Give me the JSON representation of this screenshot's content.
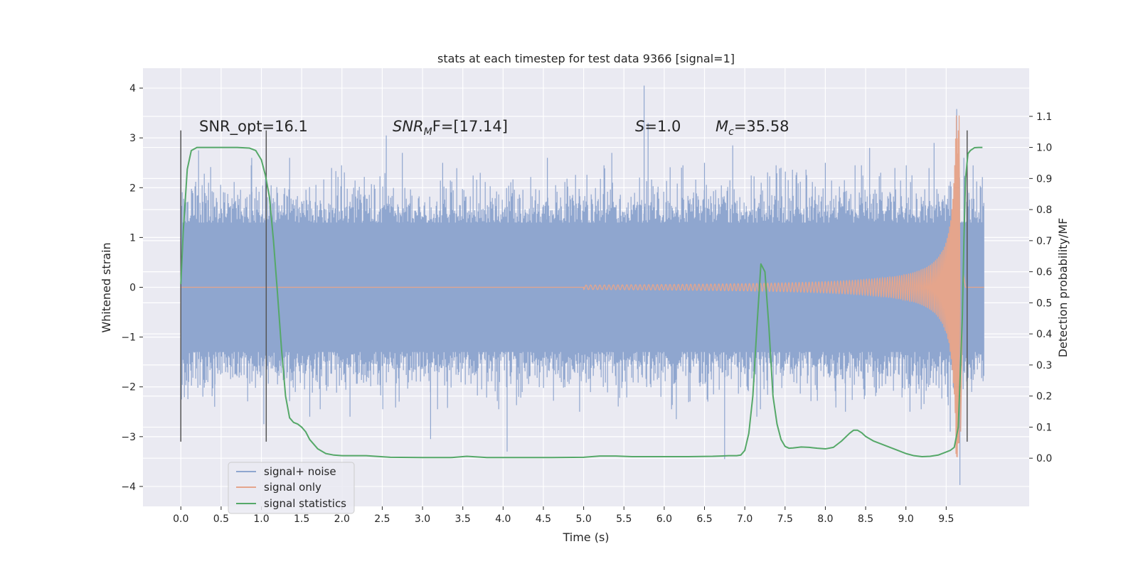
{
  "chart_data": {
    "type": "line",
    "title": "stats at each timestep for test data 9366 [signal=1]",
    "xlabel": "Time (s)",
    "ylabel": "Whitened strain",
    "ylabel_right": "Detection probability/MF",
    "xlim": [
      -0.47,
      10.53
    ],
    "ylim": [
      -4.4,
      4.4
    ],
    "ylim_right": [
      -0.155,
      1.255
    ],
    "x_ticks": [
      "0.0",
      "0.5",
      "1.0",
      "1.5",
      "2.0",
      "2.5",
      "3.0",
      "3.5",
      "4.0",
      "4.5",
      "5.0",
      "5.5",
      "6.0",
      "6.5",
      "7.0",
      "7.5",
      "8.0",
      "8.5",
      "9.0",
      "9.5"
    ],
    "y_ticks": [
      "4",
      "3",
      "2",
      "1",
      "0",
      "−1",
      "−2",
      "−3",
      "−4"
    ],
    "y_ticks_right": [
      "1.1",
      "1.0",
      "0.9",
      "0.8",
      "0.7",
      "0.6",
      "0.5",
      "0.4",
      "0.3",
      "0.2",
      "0.1",
      "0.0"
    ],
    "grid": true,
    "legend_placement": "lower-left",
    "annotations": {
      "snr_opt": "SNR_opt=16.1",
      "snr_mf_name": "SNR",
      "snr_mf_sub": "M",
      "snr_mf_rest": "F=[17.14]",
      "s_name": "S",
      "s_rest": "=1.0",
      "mc_name": "M",
      "mc_sub": "c",
      "mc_rest": "=35.58"
    },
    "vertical_markers": [
      0.0,
      1.06,
      9.76
    ],
    "vertical_marker_range": [
      -3.1,
      3.15
    ],
    "series": [
      {
        "name": "signal+ noise",
        "color": "#8fa6cf",
        "band": {
          "x_start": 0.0,
          "x_end": 9.97,
          "typical_amplitude": 1.3,
          "max": 4.05,
          "min": -3.97
        },
        "spikes": [
          [
            0.22,
            2.75
          ],
          [
            0.42,
            -2.4
          ],
          [
            0.88,
            2.6
          ],
          [
            1.03,
            -2.75
          ],
          [
            1.35,
            2.6
          ],
          [
            1.6,
            -2.6
          ],
          [
            2.1,
            -2.6
          ],
          [
            2.55,
            3.05
          ],
          [
            2.75,
            2.7
          ],
          [
            3.1,
            -3.05
          ],
          [
            3.25,
            2.5
          ],
          [
            4.05,
            -3.3
          ],
          [
            4.55,
            2.6
          ],
          [
            4.95,
            -2.5
          ],
          [
            5.35,
            2.7
          ],
          [
            5.75,
            4.05
          ],
          [
            5.8,
            3.3
          ],
          [
            6.15,
            -2.65
          ],
          [
            6.5,
            2.5
          ],
          [
            6.75,
            -3.45
          ],
          [
            6.85,
            2.85
          ],
          [
            7.15,
            -2.6
          ],
          [
            7.45,
            2.4
          ],
          [
            8.0,
            2.5
          ],
          [
            8.25,
            -2.5
          ],
          [
            8.55,
            2.8
          ],
          [
            9.05,
            -2.5
          ],
          [
            9.35,
            2.9
          ],
          [
            9.55,
            -2.9
          ],
          [
            9.63,
            3.58
          ],
          [
            9.67,
            -3.97
          ],
          [
            9.72,
            2.6
          ]
        ]
      },
      {
        "name": "signal only",
        "color": "#e5a58c",
        "chirp": {
          "t_start": 5.0,
          "t_merge": 9.66,
          "peak_amplitude": 3.45,
          "t_end": 9.97
        }
      },
      {
        "name": "signal statistics",
        "color": "#55a868",
        "axis": "right",
        "x": [
          0.0,
          0.03,
          0.08,
          0.13,
          0.2,
          0.3,
          0.5,
          0.7,
          0.85,
          0.93,
          1.0,
          1.05,
          1.1,
          1.15,
          1.2,
          1.25,
          1.3,
          1.35,
          1.4,
          1.45,
          1.5,
          1.55,
          1.6,
          1.7,
          1.8,
          1.9,
          2.0,
          2.3,
          2.6,
          3.0,
          3.35,
          3.55,
          3.8,
          4.2,
          4.6,
          5.0,
          5.2,
          5.4,
          5.6,
          6.0,
          6.3,
          6.6,
          6.8,
          6.9,
          6.95,
          7.0,
          7.05,
          7.1,
          7.15,
          7.2,
          7.25,
          7.3,
          7.35,
          7.4,
          7.45,
          7.5,
          7.55,
          7.6,
          7.7,
          7.8,
          7.9,
          8.0,
          8.1,
          8.2,
          8.3,
          8.35,
          8.4,
          8.45,
          8.5,
          8.6,
          8.7,
          8.8,
          8.9,
          9.0,
          9.1,
          9.2,
          9.3,
          9.4,
          9.5,
          9.55,
          9.6,
          9.65,
          9.7,
          9.72,
          9.74,
          9.77,
          9.8,
          9.85,
          9.9,
          9.95
        ],
        "values": [
          0.56,
          0.73,
          0.93,
          0.99,
          1.0,
          1.0,
          1.0,
          1.0,
          0.998,
          0.99,
          0.96,
          0.91,
          0.84,
          0.7,
          0.53,
          0.35,
          0.2,
          0.13,
          0.115,
          0.11,
          0.1,
          0.085,
          0.06,
          0.03,
          0.015,
          0.01,
          0.008,
          0.008,
          0.003,
          0.002,
          0.002,
          0.006,
          0.002,
          0.002,
          0.002,
          0.003,
          0.007,
          0.007,
          0.005,
          0.005,
          0.005,
          0.006,
          0.008,
          0.008,
          0.01,
          0.025,
          0.08,
          0.2,
          0.42,
          0.625,
          0.6,
          0.42,
          0.2,
          0.11,
          0.06,
          0.038,
          0.032,
          0.033,
          0.036,
          0.035,
          0.032,
          0.03,
          0.035,
          0.055,
          0.08,
          0.09,
          0.09,
          0.082,
          0.07,
          0.055,
          0.045,
          0.035,
          0.025,
          0.015,
          0.008,
          0.005,
          0.006,
          0.01,
          0.02,
          0.025,
          0.035,
          0.1,
          0.45,
          0.7,
          0.9,
          0.98,
          0.99,
          0.999,
          1.0,
          1.0
        ]
      }
    ]
  }
}
